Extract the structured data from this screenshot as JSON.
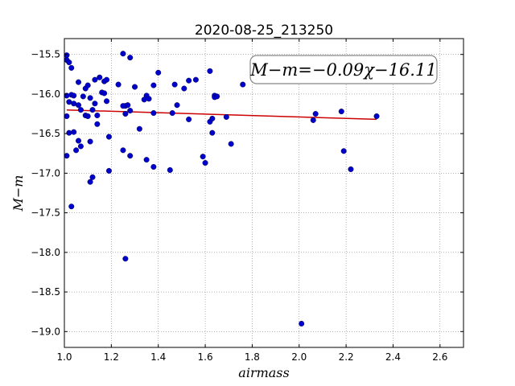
{
  "chart_data": {
    "type": "scatter",
    "title": "2020-08-25_213250",
    "xlabel": "airmass",
    "ylabel": "M−m",
    "xlim": [
      1.0,
      2.7
    ],
    "ylim": [
      -19.2,
      -15.3
    ],
    "y_inverted": true,
    "grid": true,
    "xticks": [
      1.0,
      1.2,
      1.4,
      1.6,
      1.8,
      2.0,
      2.2,
      2.4,
      2.6
    ],
    "xtick_labels": [
      "1.0",
      "1.2",
      "1.4",
      "1.6",
      "1.8",
      "2.0",
      "2.2",
      "2.4",
      "2.6"
    ],
    "yticks": [
      -15.5,
      -16.0,
      -16.5,
      -17.0,
      -17.5,
      -18.0,
      -18.5,
      -19.0
    ],
    "ytick_labels": [
      "−15.5",
      "−16.0",
      "−16.5",
      "−17.0",
      "−17.5",
      "−18.0",
      "−18.5",
      "−19.0"
    ],
    "annotation": "M−m=−0.09χ−16.11",
    "annotation_position": "top-right",
    "point_color": "#0000cc",
    "fit_color": "#cc0000",
    "fit": {
      "slope": -0.09,
      "intercept": -16.11,
      "x_range": [
        1.01,
        2.33
      ]
    },
    "points": [
      [
        1.01,
        -15.51
      ],
      [
        1.01,
        -15.57
      ],
      [
        1.02,
        -15.6
      ],
      [
        1.03,
        -15.67
      ],
      [
        1.01,
        -16.02
      ],
      [
        1.03,
        -16.01
      ],
      [
        1.04,
        -16.02
      ],
      [
        1.02,
        -16.1
      ],
      [
        1.04,
        -16.12
      ],
      [
        1.06,
        -16.14
      ],
      [
        1.01,
        -16.28
      ],
      [
        1.02,
        -16.49
      ],
      [
        1.04,
        -16.48
      ],
      [
        1.01,
        -16.78
      ],
      [
        1.03,
        -17.42
      ],
      [
        1.05,
        -16.71
      ],
      [
        1.06,
        -16.59
      ],
      [
        1.07,
        -16.66
      ],
      [
        1.06,
        -15.85
      ],
      [
        1.07,
        -16.2
      ],
      [
        1.08,
        -16.03
      ],
      [
        1.09,
        -15.93
      ],
      [
        1.1,
        -15.89
      ],
      [
        1.11,
        -16.05
      ],
      [
        1.09,
        -16.27
      ],
      [
        1.1,
        -16.28
      ],
      [
        1.11,
        -16.6
      ],
      [
        1.12,
        -17.05
      ],
      [
        1.11,
        -17.11
      ],
      [
        1.12,
        -16.2
      ],
      [
        1.13,
        -16.12
      ],
      [
        1.14,
        -16.27
      ],
      [
        1.14,
        -16.38
      ],
      [
        1.13,
        -15.82
      ],
      [
        1.15,
        -15.79
      ],
      [
        1.16,
        -15.98
      ],
      [
        1.17,
        -15.84
      ],
      [
        1.18,
        -15.82
      ],
      [
        1.17,
        -15.99
      ],
      [
        1.18,
        -16.09
      ],
      [
        1.19,
        -16.54
      ],
      [
        1.19,
        -16.97
      ],
      [
        1.23,
        -15.88
      ],
      [
        1.25,
        -15.49
      ],
      [
        1.28,
        -15.54
      ],
      [
        1.26,
        -16.15
      ],
      [
        1.27,
        -16.14
      ],
      [
        1.25,
        -16.15
      ],
      [
        1.26,
        -16.25
      ],
      [
        1.28,
        -16.21
      ],
      [
        1.25,
        -16.71
      ],
      [
        1.28,
        -16.78
      ],
      [
        1.3,
        -15.91
      ],
      [
        1.26,
        -18.08
      ],
      [
        1.32,
        -16.44
      ],
      [
        1.34,
        -16.07
      ],
      [
        1.35,
        -16.02
      ],
      [
        1.36,
        -16.06
      ],
      [
        1.35,
        -16.83
      ],
      [
        1.38,
        -15.89
      ],
      [
        1.38,
        -16.24
      ],
      [
        1.38,
        -16.92
      ],
      [
        1.4,
        -15.73
      ],
      [
        1.45,
        -16.96
      ],
      [
        1.46,
        -16.24
      ],
      [
        1.47,
        -15.88
      ],
      [
        1.48,
        -16.14
      ],
      [
        1.51,
        -15.93
      ],
      [
        1.53,
        -15.83
      ],
      [
        1.53,
        -16.32
      ],
      [
        1.56,
        -15.82
      ],
      [
        1.59,
        -16.79
      ],
      [
        1.6,
        -16.87
      ],
      [
        1.62,
        -15.71
      ],
      [
        1.62,
        -16.35
      ],
      [
        1.63,
        -16.31
      ],
      [
        1.63,
        -16.49
      ],
      [
        1.64,
        -16.02
      ],
      [
        1.64,
        -16.04
      ],
      [
        1.65,
        -16.03
      ],
      [
        1.69,
        -16.29
      ],
      [
        1.71,
        -16.63
      ],
      [
        1.76,
        -15.88
      ],
      [
        2.01,
        -18.9
      ],
      [
        2.06,
        -16.33
      ],
      [
        2.07,
        -16.25
      ],
      [
        2.18,
        -16.22
      ],
      [
        2.19,
        -16.72
      ],
      [
        2.22,
        -16.95
      ],
      [
        2.33,
        -16.28
      ]
    ]
  }
}
